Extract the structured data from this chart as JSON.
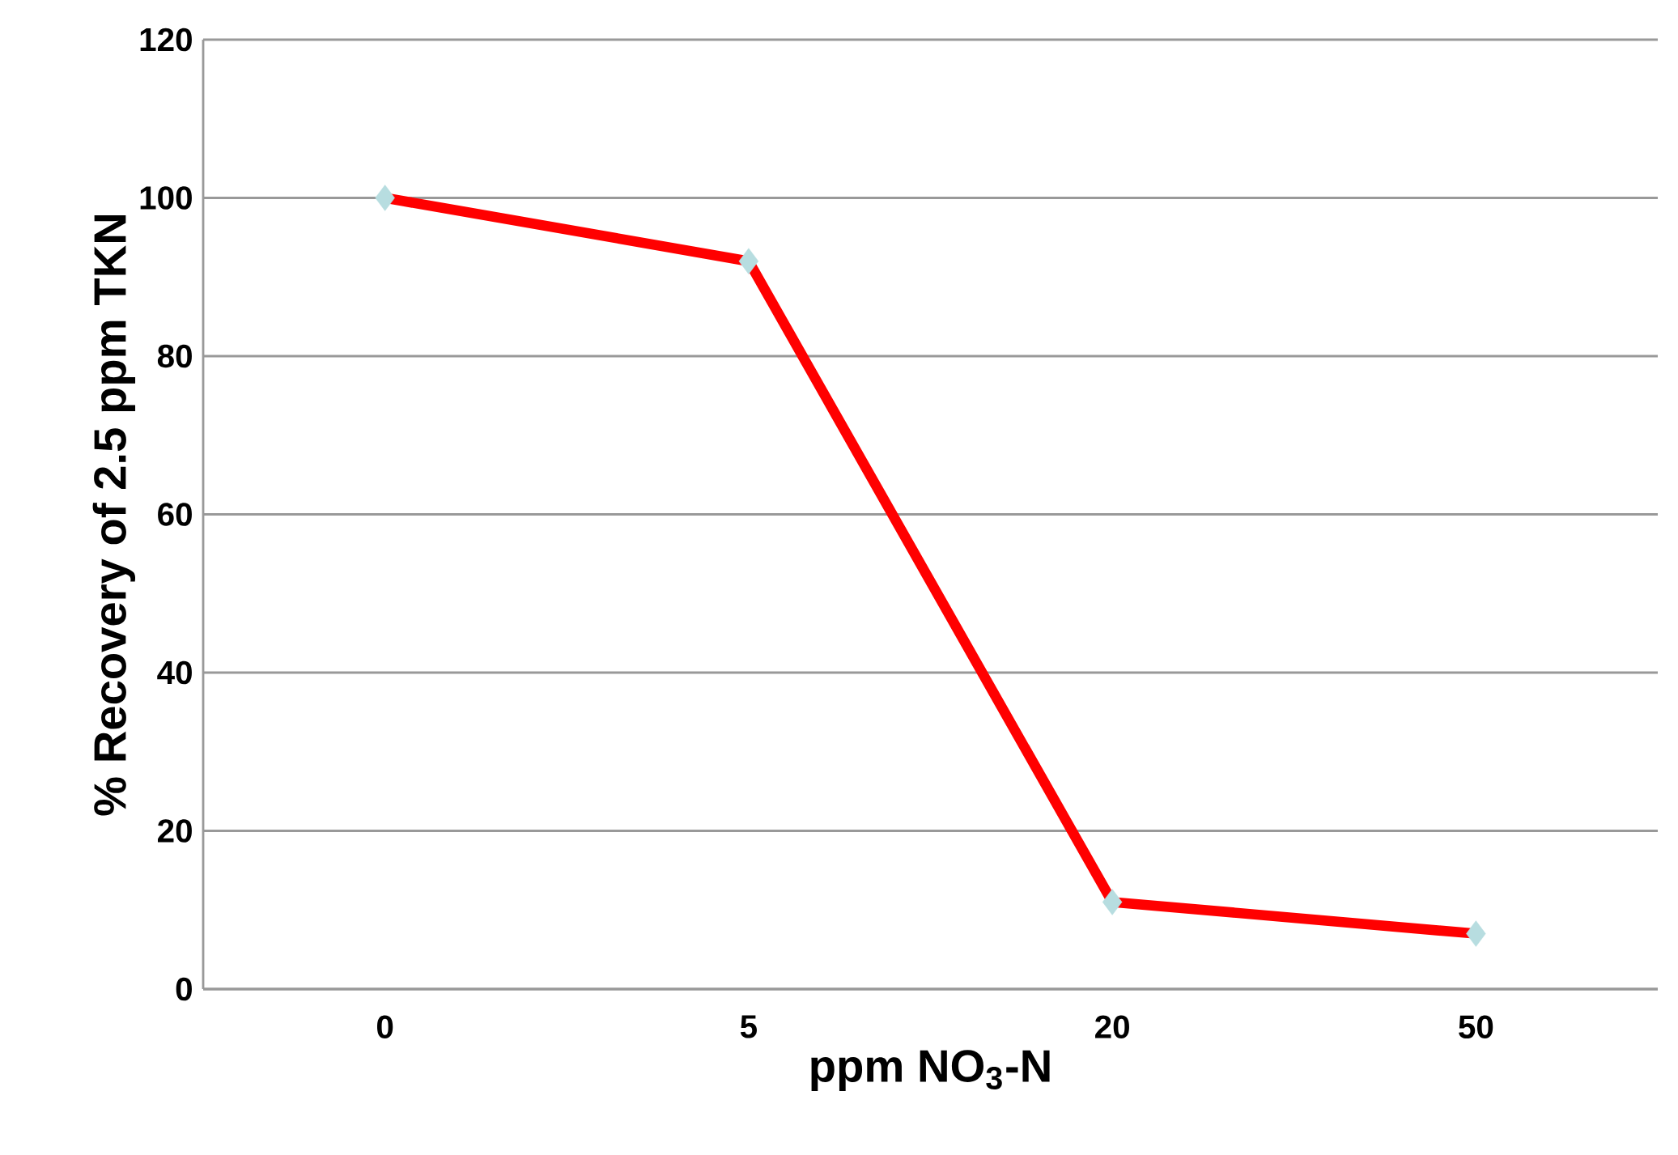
{
  "chart_data": {
    "type": "line",
    "xlabel": "ppm NO$_{3}$-N",
    "ylabel": "% Recovery of 2.5 ppm TKN",
    "categories": [
      "0",
      "5",
      "20",
      "50"
    ],
    "series": [
      {
        "color": "#ff0000",
        "colors": [
          "#b7dde0",
          "#b7dde0",
          "#b7dde0",
          "#b7dde0"
        ],
        "values": [
          100,
          92,
          11,
          7
        ]
      }
    ],
    "ylim": [
      0,
      120
    ],
    "yticks": [
      0,
      20,
      40,
      60,
      80,
      100,
      120
    ],
    "grid": "y",
    "marker": "diamond",
    "line_style": "solid"
  }
}
